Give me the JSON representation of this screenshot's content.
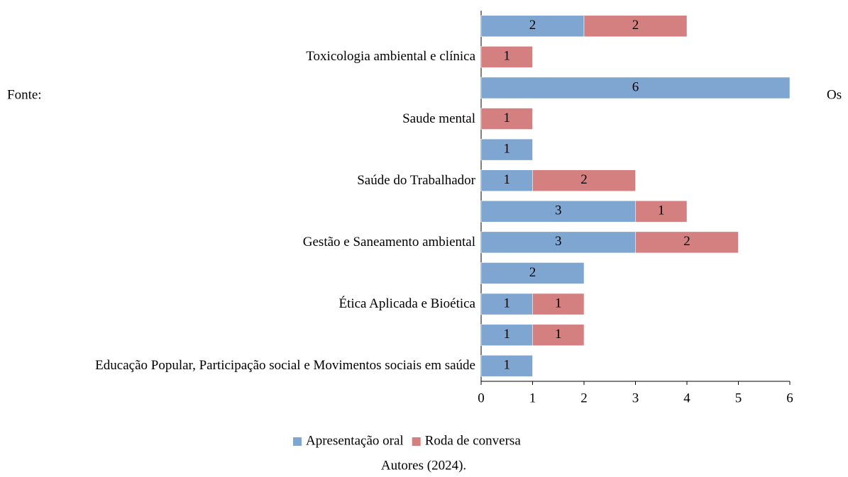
{
  "chart_data": {
    "type": "bar",
    "orientation": "horizontal",
    "stacked": true,
    "categories": [
      null,
      "Toxicologia ambiental e clínica",
      null,
      "Saude mental",
      null,
      "Saúde do Trabalhador",
      null,
      "Gestão e Saneamento ambiental",
      null,
      "Ética Aplicada e Bioética",
      null,
      "Educação Popular, Participação social e Movimentos sociais em saúde"
    ],
    "series": [
      {
        "name": "Apresentação oral",
        "color": "#7fa5d1",
        "values": [
          2,
          null,
          6,
          null,
          1,
          1,
          3,
          3,
          2,
          1,
          1,
          1
        ]
      },
      {
        "name": "Roda de conversa",
        "color": "#d58080",
        "values": [
          2,
          1,
          null,
          1,
          null,
          2,
          1,
          2,
          null,
          1,
          1,
          null
        ]
      }
    ],
    "xlim": [
      0,
      6
    ],
    "xticks": [
      0,
      1,
      2,
      3,
      4,
      5,
      6
    ],
    "legend": "bottom"
  },
  "caption": {
    "prefix": "Fonte:",
    "source": "Autores (2024).",
    "trailing": "Os"
  }
}
